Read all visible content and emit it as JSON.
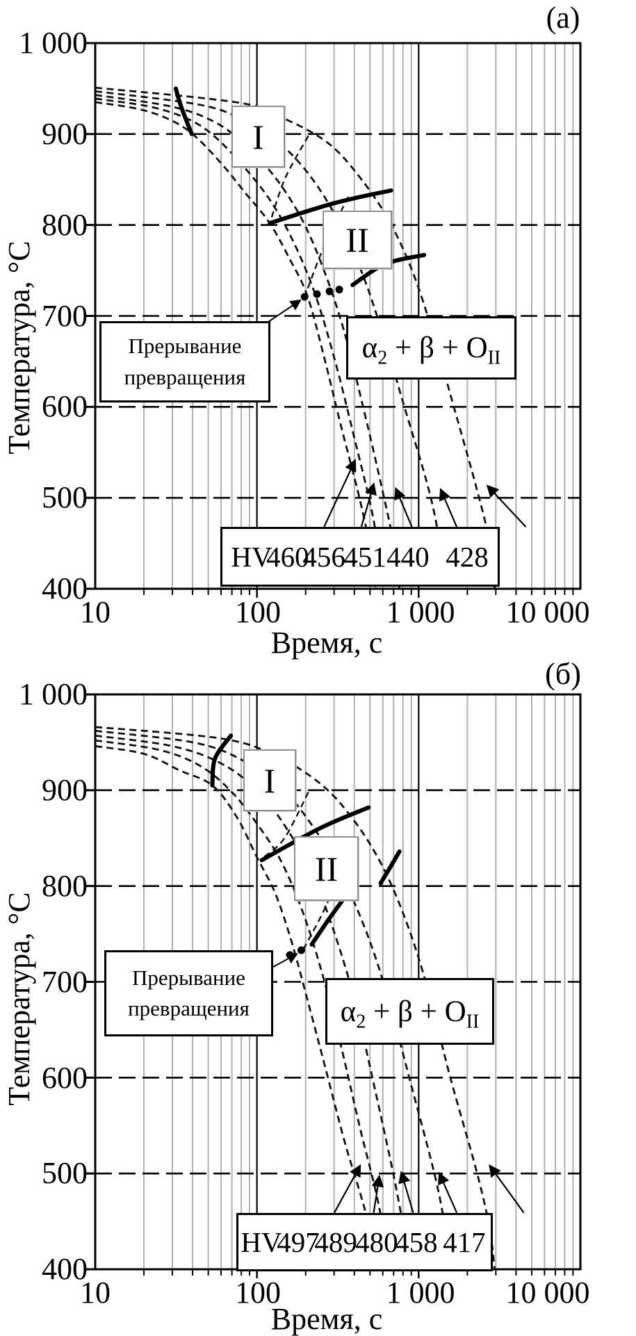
{
  "page": {
    "background": "#ffffff",
    "grid_minor_color": "#b0b0b0",
    "line_color": "#000000"
  },
  "panels": [
    {
      "panel_label": "(а)",
      "axes": {
        "x_title": "Время, с",
        "y_title": "Температура, °С",
        "x_tick_labels": [
          "10",
          "100",
          "1 000",
          "10 000"
        ],
        "y_tick_labels": [
          "1 000",
          "900",
          "800",
          "700",
          "600",
          "500",
          "400"
        ]
      },
      "annotations": {
        "region1": "I",
        "region2": "II",
        "interruption_line1": "Прерывание",
        "interruption_line2": "превращения",
        "phase_alpha": "α",
        "phase_alpha_sub": "2",
        "phase_mid": " + β + ",
        "phase_o": "O",
        "phase_o_sub": "II",
        "hv_prefix": "HV",
        "hv_values": [
          "460",
          "456",
          "451",
          "440",
          "428"
        ]
      },
      "chart_data": {
        "type": "line",
        "xscale": "log",
        "xlim": [
          10,
          10000
        ],
        "ylim": [
          400,
          1000
        ],
        "xlabel": "Время, с",
        "ylabel": "Температура, °С",
        "x_ticks": [
          10,
          100,
          1000,
          10000
        ],
        "y_ticks": [
          400,
          500,
          600,
          700,
          800,
          900,
          1000
        ],
        "grid": "on",
        "cooling_curves": [
          {
            "name": "HV 460",
            "points": [
              [
                10,
                935
              ],
              [
                18,
                928
              ],
              [
                28,
                917
              ],
              [
                40,
                900
              ],
              [
                60,
                868
              ],
              [
                85,
                835
              ],
              [
                120,
                802
              ],
              [
                160,
                762
              ],
              [
                205,
                722
              ],
              [
                260,
                655
              ],
              [
                330,
                580
              ],
              [
                430,
                500
              ],
              [
                500,
                445
              ],
              [
                545,
                400
              ]
            ]
          },
          {
            "name": "HV 456",
            "points": [
              [
                10,
                939
              ],
              [
                22,
                930
              ],
              [
                38,
                916
              ],
              [
                55,
                897
              ],
              [
                85,
                862
              ],
              [
                125,
                823
              ],
              [
                175,
                775
              ],
              [
                235,
                718
              ],
              [
                310,
                645
              ],
              [
                405,
                562
              ],
              [
                510,
                488
              ],
              [
                580,
                430
              ],
              [
                615,
                400
              ]
            ]
          },
          {
            "name": "HV 451",
            "points": [
              [
                10,
                943
              ],
              [
                30,
                930
              ],
              [
                55,
                913
              ],
              [
                85,
                888
              ],
              [
                130,
                852
              ],
              [
                190,
                806
              ],
              [
                260,
                750
              ],
              [
                345,
                684
              ],
              [
                445,
                606
              ],
              [
                580,
                518
              ],
              [
                700,
                450
              ],
              [
                760,
                400
              ]
            ]
          },
          {
            "name": "HV 440",
            "points": [
              [
                10,
                947
              ],
              [
                45,
                932
              ],
              [
                85,
                914
              ],
              [
                140,
                889
              ],
              [
                215,
                853
              ],
              [
                315,
                806
              ],
              [
                445,
                748
              ],
              [
                600,
                680
              ],
              [
                810,
                602
              ],
              [
                1150,
                510
              ],
              [
                1350,
                450
              ],
              [
                1450,
                400
              ]
            ]
          },
          {
            "name": "HV 428",
            "points": [
              [
                10,
                951
              ],
              [
                80,
                934
              ],
              [
                160,
                914
              ],
              [
                280,
                889
              ],
              [
                430,
                853
              ],
              [
                650,
                806
              ],
              [
                920,
                748
              ],
              [
                1230,
                680
              ],
              [
                1650,
                600
              ],
              [
                2300,
                508
              ],
              [
                2750,
                450
              ],
              [
                2950,
                400
              ]
            ]
          }
        ],
        "boundary_curves": [
          [
            [
              208,
              898
            ],
            [
              150,
              852
            ],
            [
              122,
              806
            ]
          ],
          [
            [
              367,
              831
            ],
            [
              262,
              778
            ],
            [
              200,
              724
            ]
          ]
        ],
        "solid_segments": [
          [
            [
              31.5,
              950
            ],
            [
              34,
              930
            ],
            [
              39.5,
              900
            ]
          ],
          [
            [
              120,
              802
            ],
            [
              300,
              824
            ],
            [
              675,
              838
            ]
          ],
          [
            [
              390,
              734
            ],
            [
              620,
              757
            ],
            [
              1080,
              767
            ]
          ]
        ],
        "interruption_dots": [
          [
            197,
            721
          ],
          [
            235,
            724
          ],
          [
            281,
            727
          ],
          [
            323,
            729
          ]
        ],
        "interruption_arrow": {
          "from": [
            112,
            691
          ],
          "to": [
            185,
            717
          ]
        },
        "hv_arrows": [
          {
            "from": [
              260,
              468
            ],
            "to": [
              404,
              541
            ]
          },
          {
            "from": [
              442,
              468
            ],
            "to": [
              527,
              515
            ]
          },
          {
            "from": [
              908,
              468
            ],
            "to": [
              723,
              510
            ]
          },
          {
            "from": [
              1720,
              468
            ],
            "to": [
              1370,
              509
            ]
          },
          {
            "from": [
              4600,
              468
            ],
            "to": [
              2670,
              513
            ]
          }
        ]
      }
    },
    {
      "panel_label": "(б)",
      "axes": {
        "x_title": "Время, с",
        "y_title": "Температура, °С",
        "x_tick_labels": [
          "10",
          "100",
          "1 000",
          "10 000"
        ],
        "y_tick_labels": [
          "1 000",
          "900",
          "800",
          "700",
          "600",
          "500",
          "400"
        ]
      },
      "annotations": {
        "region1": "I",
        "region2": "II",
        "interruption_line1": "Прерывание",
        "interruption_line2": "превращения",
        "phase_alpha": "α",
        "phase_alpha_sub": "2",
        "phase_mid": " + β + ",
        "phase_o": "O",
        "phase_o_sub": "II",
        "hv_prefix": "HV",
        "hv_values": [
          "497",
          "489",
          "480",
          "458",
          "417"
        ]
      },
      "chart_data": {
        "type": "line",
        "xscale": "log",
        "xlim": [
          10,
          10000
        ],
        "ylim": [
          400,
          1000
        ],
        "xlabel": "Время, с",
        "ylabel": "Температура, °С",
        "x_ticks": [
          10,
          100,
          1000,
          10000
        ],
        "y_ticks": [
          400,
          500,
          600,
          700,
          800,
          900,
          1000
        ],
        "grid": "on",
        "cooling_curves": [
          {
            "name": "HV 497",
            "points": [
              [
                10,
                946
              ],
              [
                20,
                938
              ],
              [
                33,
                921
              ],
              [
                53,
                905
              ],
              [
                75,
                872
              ],
              [
                100,
                830
              ],
              [
                130,
                792
              ],
              [
                165,
                740
              ],
              [
                210,
                675
              ],
              [
                270,
                605
              ],
              [
                350,
                532
              ],
              [
                465,
                462
              ],
              [
                560,
                400
              ]
            ]
          },
          {
            "name": "HV 489",
            "points": [
              [
                10,
                952
              ],
              [
                25,
                942
              ],
              [
                45,
                925
              ],
              [
                70,
                898
              ],
              [
                100,
                865
              ],
              [
                140,
                827
              ],
              [
                190,
                775
              ],
              [
                250,
                712
              ],
              [
                330,
                634
              ],
              [
                430,
                550
              ],
              [
                565,
                468
              ],
              [
                650,
                400
              ]
            ]
          },
          {
            "name": "HV 480",
            "points": [
              [
                10,
                957
              ],
              [
                30,
                946
              ],
              [
                60,
                928
              ],
              [
                100,
                900
              ],
              [
                150,
                862
              ],
              [
                220,
                812
              ],
              [
                300,
                752
              ],
              [
                400,
                682
              ],
              [
                530,
                592
              ],
              [
                700,
                498
              ],
              [
                810,
                440
              ],
              [
                870,
                400
              ]
            ]
          },
          {
            "name": "HV 458",
            "points": [
              [
                10,
                962
              ],
              [
                40,
                950
              ],
              [
                80,
                932
              ],
              [
                140,
                903
              ],
              [
                220,
                863
              ],
              [
                330,
                813
              ],
              [
                480,
                750
              ],
              [
                650,
                682
              ],
              [
                890,
                595
              ],
              [
                1250,
                500
              ],
              [
                1450,
                445
              ],
              [
                1550,
                400
              ]
            ]
          },
          {
            "name": "HV 417",
            "points": [
              [
                10,
                966
              ],
              [
                60,
                954
              ],
              [
                130,
                936
              ],
              [
                250,
                906
              ],
              [
                400,
                868
              ],
              [
                600,
                820
              ],
              [
                850,
                760
              ],
              [
                1150,
                690
              ],
              [
                1570,
                600
              ],
              [
                2300,
                500
              ],
              [
                2750,
                442
              ],
              [
                2950,
                400
              ]
            ]
          }
        ],
        "boundary_curves": [
          [
            [
              208,
              898
            ],
            [
              148,
              850
            ],
            [
              110,
              830
            ]
          ],
          [
            [
              360,
              828
            ],
            [
              255,
              772
            ],
            [
              192,
              733
            ]
          ]
        ],
        "solid_segments": [
          [
            [
              69,
              957
            ],
            [
              55,
              933
            ],
            [
              53,
              905
            ]
          ],
          [
            [
              107,
              827
            ],
            [
              250,
              861
            ],
            [
              490,
              882
            ]
          ],
          [
            [
              582,
              803
            ],
            [
              680,
              822
            ],
            [
              760,
              836
            ]
          ],
          [
            [
              218,
              739
            ],
            [
              280,
              766
            ],
            [
              345,
              787
            ]
          ]
        ],
        "interruption_dots": [
          [
            160,
            728
          ],
          [
            188,
            733
          ]
        ],
        "interruption_arrow": {
          "from": [
            118,
            713
          ],
          "to": [
            176,
            729
          ]
        },
        "hv_arrows": [
          {
            "from": [
              301,
              459
            ],
            "to": [
              434,
              508
            ]
          },
          {
            "from": [
              527,
              459
            ],
            "to": [
              571,
              497
            ]
          },
          {
            "from": [
              925,
              459
            ],
            "to": [
              782,
              501
            ]
          },
          {
            "from": [
              1720,
              459
            ],
            "to": [
              1343,
              500
            ]
          },
          {
            "from": [
              4470,
              459
            ],
            "to": [
              2755,
              508
            ]
          }
        ]
      }
    }
  ]
}
